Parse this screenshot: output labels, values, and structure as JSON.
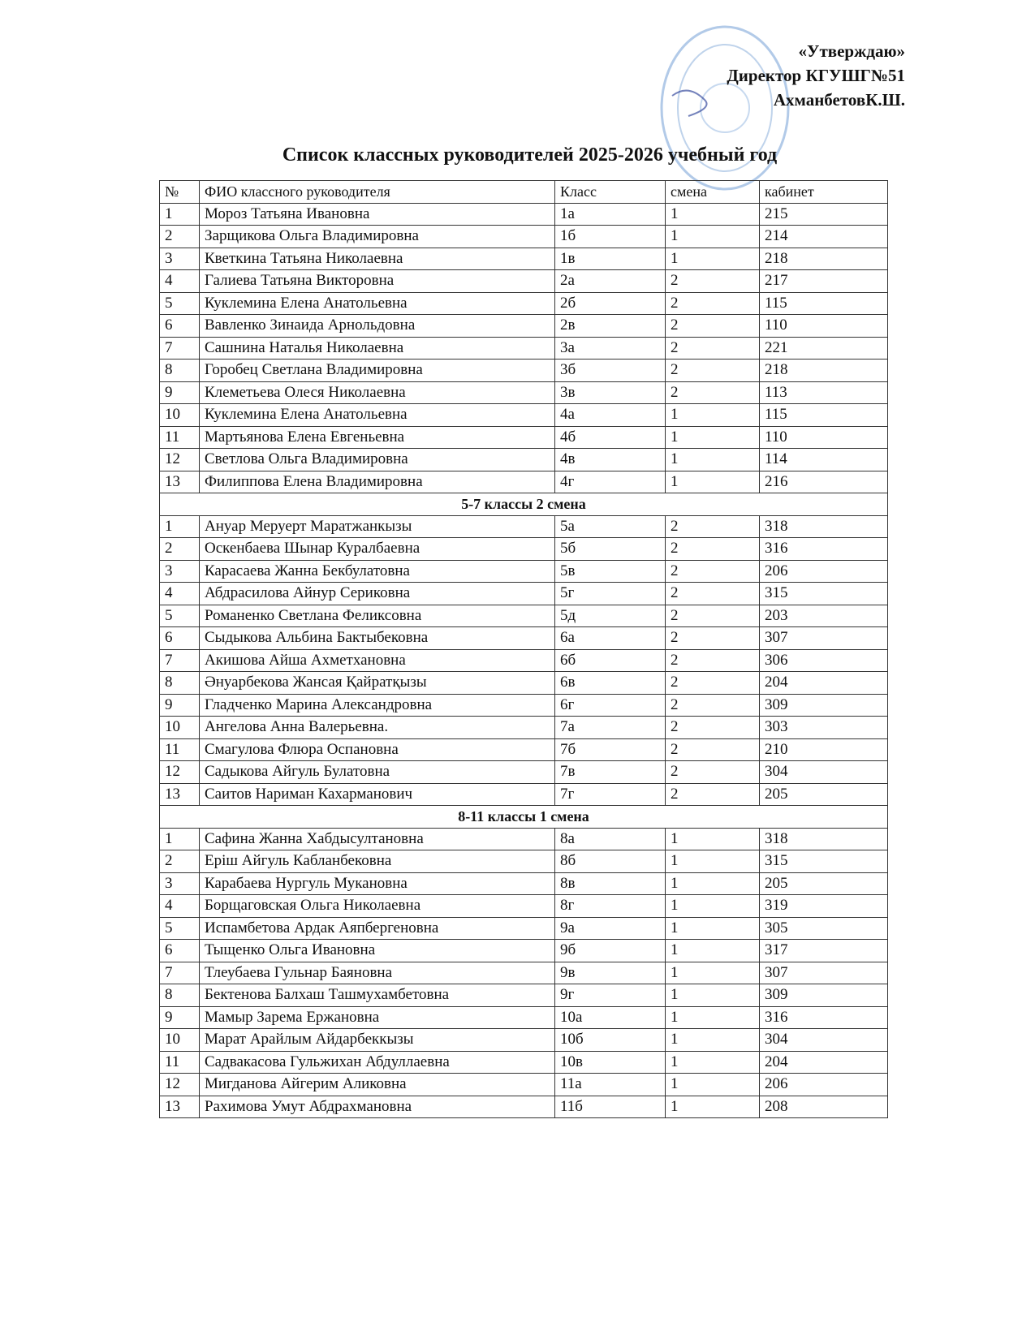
{
  "approval": {
    "line1": "«Утверждаю»",
    "line2": "Директор КГУШГ№51",
    "line3": "АхманбетовК.Ш."
  },
  "title": "Список классных руководителей 2025-2026 учебный год",
  "table": {
    "columns": [
      "№",
      "ФИО классного руководителя",
      "Класс",
      "смена",
      "кабинет"
    ],
    "sections": [
      {
        "rows": [
          [
            "1",
            "Мороз Татьяна Ивановна",
            "1а",
            "1",
            "215"
          ],
          [
            "2",
            "Зарщикова Ольга Владимировна",
            "1б",
            "1",
            "214"
          ],
          [
            "3",
            "Кветкина Татьяна Николаевна",
            "1в",
            "1",
            "218"
          ],
          [
            "4",
            "Галиева Татьяна Викторовна",
            "2а",
            "2",
            "217"
          ],
          [
            "5",
            "Куклемина Елена Анатольевна",
            "2б",
            "2",
            "115"
          ],
          [
            "6",
            "Вавленко Зинаида Арнольдовна",
            "2в",
            "2",
            "110"
          ],
          [
            "7",
            "Сашнина Наталья Николаевна",
            "3а",
            "2",
            "221"
          ],
          [
            "8",
            "Горобец Светлана Владимировна",
            "3б",
            "2",
            "218"
          ],
          [
            "9",
            "Клеметьева Олеся Николаевна",
            "3в",
            "2",
            "113"
          ],
          [
            "10",
            "Куклемина Елена Анатольевна",
            "4а",
            "1",
            "115"
          ],
          [
            "11",
            "Мартьянова Елена Евгеньевна",
            "4б",
            "1",
            "110"
          ],
          [
            "12",
            "Светлова Ольга Владимировна",
            "4в",
            "1",
            "114"
          ],
          [
            "13",
            "Филиппова Елена Владимировна",
            "4г",
            "1",
            "216"
          ]
        ]
      },
      {
        "title": "5-7 классы 2 смена",
        "rows": [
          [
            "1",
            "Ануар Меруерт Маратжанкызы",
            "5а",
            "2",
            "318"
          ],
          [
            "2",
            "Оскенбаева Шынар Куралбаевна",
            "5б",
            "2",
            "316"
          ],
          [
            "3",
            "Карасаева Жанна Бекбулатовна",
            "5в",
            "2",
            "206"
          ],
          [
            "4",
            "Абдрасилова Айнур Сериковна",
            "5г",
            "2",
            "315"
          ],
          [
            "5",
            "Романенко Светлана Феликсовна",
            "5д",
            "2",
            "203"
          ],
          [
            "6",
            "Сыдыкова Альбина Бактыбековна",
            "6а",
            "2",
            "307"
          ],
          [
            "7",
            "Акишова Айша Ахметхановна",
            "6б",
            "2",
            "306"
          ],
          [
            "8",
            "Әнуарбекова Жансая Қайратқызы",
            "6в",
            "2",
            "204"
          ],
          [
            "9",
            "Гладченко Марина Александровна",
            "6г",
            "2",
            "309"
          ],
          [
            "10",
            "Ангелова Анна Валерьевна.",
            "7а",
            "2",
            "303"
          ],
          [
            "11",
            "Смагулова Флюра Оспановна",
            "7б",
            "2",
            "210"
          ],
          [
            "12",
            "Садыкова Айгуль Булатовна",
            "7в",
            "2",
            "304"
          ],
          [
            "13",
            "Саитов Нариман Кахарманович",
            "7г",
            "2",
            "205"
          ]
        ]
      },
      {
        "title": "8-11 классы  1 смена",
        "rows": [
          [
            "1",
            "Сафина Жанна Хабдысултановна",
            "8а",
            "1",
            "318"
          ],
          [
            "2",
            "Еріш Айгуль Кабланбековна",
            "8б",
            "1",
            "315"
          ],
          [
            "3",
            "Карабаева Нургуль Мукановна",
            "8в",
            "1",
            "205"
          ],
          [
            "4",
            "Борщаговская Ольга Николаевна",
            "8г",
            "1",
            "319"
          ],
          [
            "5",
            "Испамбетова Ардак Аяпбергеновна",
            "9а",
            "1",
            "305"
          ],
          [
            "6",
            "Тыщенко Ольга Ивановна",
            "9б",
            "1",
            "317"
          ],
          [
            "7",
            "Тлеубаева Гульнар Баяновна",
            "9в",
            "1",
            "307"
          ],
          [
            "8",
            "Бектенова Балхаш Ташмухамбетовна",
            "9г",
            "1",
            "309"
          ],
          [
            "9",
            "Мамыр Зарема Ержановна",
            "10а",
            "1",
            "316"
          ],
          [
            "10",
            "Марат Арайлым Айдарбеккызы",
            "10б",
            "1",
            "304"
          ],
          [
            "11",
            "Садвакасова Гульжихан Абдуллаевна",
            "10в",
            "1",
            "204"
          ],
          [
            "12",
            "Мигданова Айгерим Аликовна",
            "11а",
            "1",
            "206"
          ],
          [
            "13",
            "Рахимова Умут Абдрахмановна",
            "11б",
            "1",
            "208"
          ]
        ]
      }
    ]
  }
}
